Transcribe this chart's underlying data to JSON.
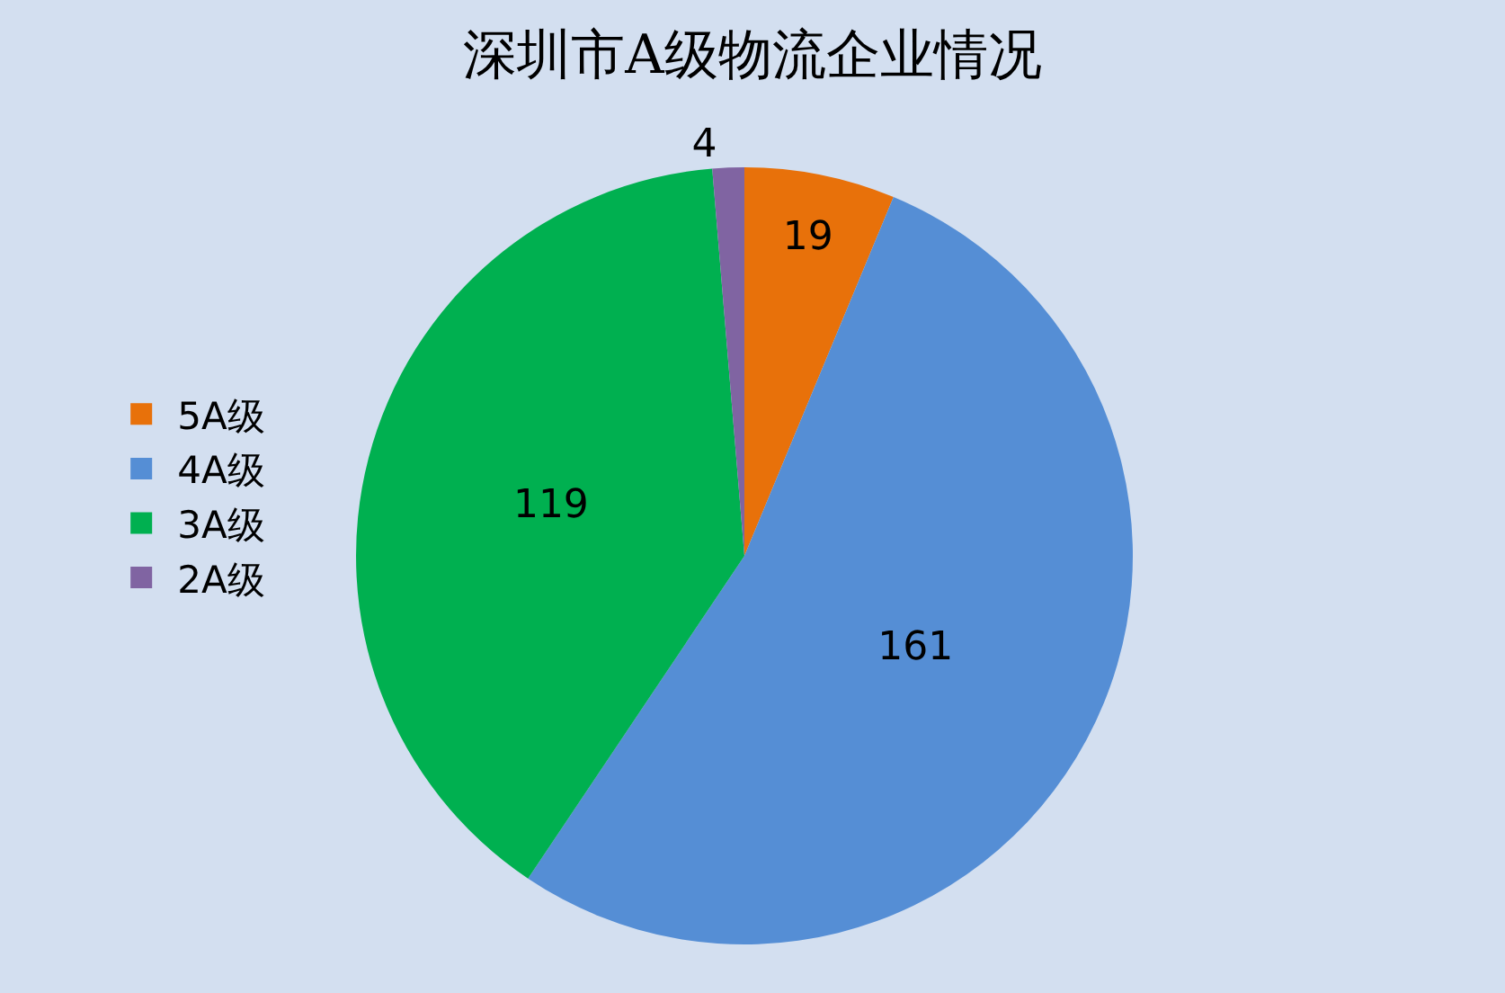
{
  "chart_data": {
    "type": "pie",
    "title": "深圳市A级物流企业情况",
    "categories": [
      "5A级",
      "4A级",
      "3A级",
      "2A级"
    ],
    "values": [
      19,
      161,
      119,
      4
    ],
    "colors": [
      "#e8710a",
      "#558ed5",
      "#00b050",
      "#8064a2"
    ],
    "data_labels": true,
    "legend": "left"
  }
}
